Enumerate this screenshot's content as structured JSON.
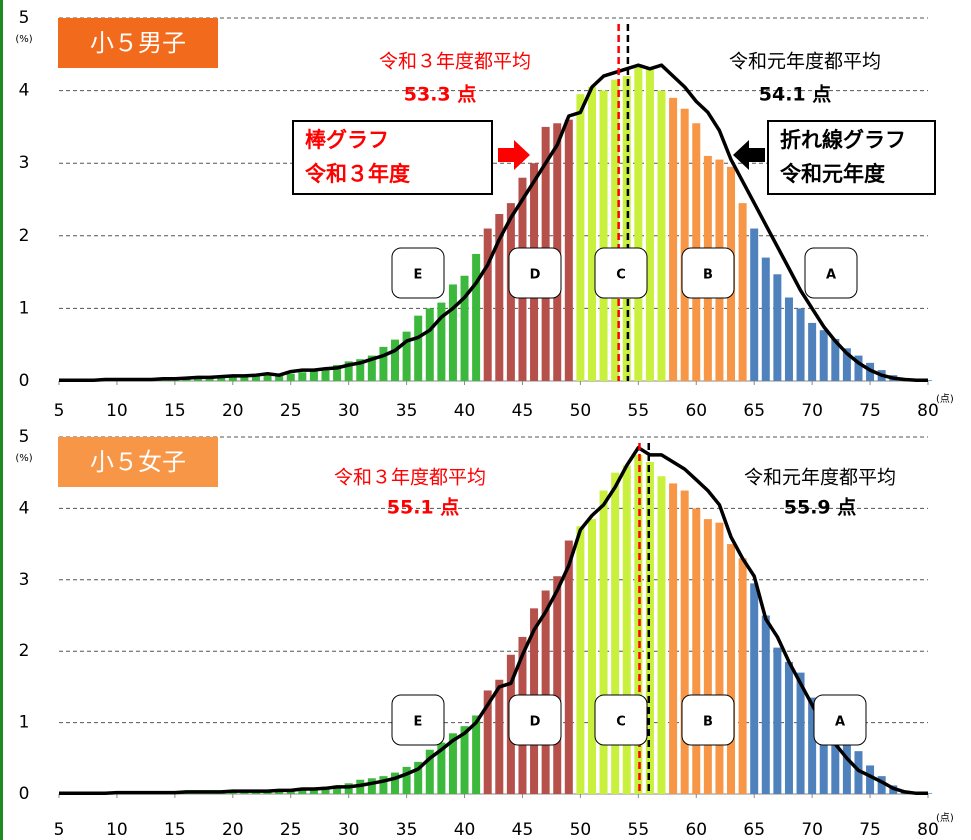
{
  "chart_data": [
    {
      "type": "bar",
      "title": "小５男子",
      "title_color": "#f26b1d",
      "y_unit": "(%)",
      "x_unit": "(点)",
      "x": [
        5,
        6,
        7,
        8,
        9,
        10,
        11,
        12,
        13,
        14,
        15,
        16,
        17,
        18,
        19,
        20,
        21,
        22,
        23,
        24,
        25,
        26,
        27,
        28,
        29,
        30,
        31,
        32,
        33,
        34,
        35,
        36,
        37,
        38,
        39,
        40,
        41,
        42,
        43,
        44,
        45,
        46,
        47,
        48,
        49,
        50,
        51,
        52,
        53,
        54,
        55,
        56,
        57,
        58,
        59,
        60,
        61,
        62,
        63,
        64,
        65,
        66,
        67,
        68,
        69,
        70,
        71,
        72,
        73,
        74,
        75,
        76,
        77,
        78,
        79,
        80
      ],
      "xlim": [
        5,
        80
      ],
      "xticks": [
        5,
        10,
        15,
        20,
        25,
        30,
        35,
        40,
        45,
        50,
        55,
        60,
        65,
        70,
        75,
        80
      ],
      "ylim": [
        0,
        5
      ],
      "yticks": [
        0,
        1,
        2,
        3,
        4,
        5
      ],
      "grid": true,
      "grades": [
        {
          "label": "E",
          "upper": 41,
          "color": "#3cb83c"
        },
        {
          "label": "D",
          "upper": 49,
          "color": "#b5504b"
        },
        {
          "label": "C",
          "upper": 57,
          "color": "#c8f03c"
        },
        {
          "label": "B",
          "upper": 64,
          "color": "#f79646"
        },
        {
          "label": "A",
          "upper": 80,
          "color": "#4f81bd"
        }
      ],
      "series": [
        {
          "type": "bar",
          "values": [
            0,
            0,
            0,
            0,
            0.01,
            0.01,
            0.01,
            0.01,
            0.02,
            0.02,
            0.02,
            0.03,
            0.03,
            0.04,
            0.05,
            0.05,
            0.06,
            0.07,
            0.08,
            0.09,
            0.1,
            0.12,
            0.15,
            0.18,
            0.22,
            0.27,
            0.3,
            0.35,
            0.47,
            0.57,
            0.68,
            0.9,
            1.0,
            1.08,
            1.33,
            1.45,
            1.75,
            2.1,
            2.3,
            2.45,
            2.8,
            3.0,
            3.5,
            3.55,
            3.6,
            3.95,
            4.05,
            4.0,
            4.15,
            4.2,
            4.35,
            4.3,
            4.0,
            3.9,
            3.75,
            3.55,
            3.1,
            3.05,
            2.95,
            2.45,
            2.1,
            1.7,
            1.47,
            1.15,
            1.0,
            0.8,
            0.7,
            0.58,
            0.45,
            0.35,
            0.25,
            0.15,
            0.08,
            0.04,
            0.02,
            0.01
          ]
        },
        {
          "type": "line",
          "color": "#000000",
          "values": [
            0.01,
            0.01,
            0.01,
            0.01,
            0.02,
            0.02,
            0.02,
            0.02,
            0.02,
            0.03,
            0.03,
            0.04,
            0.05,
            0.05,
            0.06,
            0.07,
            0.07,
            0.08,
            0.1,
            0.08,
            0.13,
            0.15,
            0.15,
            0.17,
            0.18,
            0.22,
            0.25,
            0.3,
            0.35,
            0.42,
            0.55,
            0.6,
            0.7,
            0.88,
            1.0,
            1.15,
            1.35,
            1.6,
            1.95,
            2.25,
            2.5,
            2.75,
            3.0,
            3.25,
            3.65,
            3.7,
            4.05,
            4.2,
            4.25,
            4.3,
            4.35,
            4.3,
            4.35,
            4.2,
            4.05,
            3.85,
            3.7,
            3.45,
            3.05,
            2.75,
            2.45,
            2.15,
            1.85,
            1.55,
            1.25,
            1.0,
            0.75,
            0.55,
            0.38,
            0.25,
            0.15,
            0.08,
            0.04,
            0.02,
            0.01,
            0.01
          ]
        }
      ],
      "means": [
        {
          "label": "令和３年度都平均",
          "value": 53.3,
          "value_label": "53.3 点",
          "color": "#ff0000"
        },
        {
          "label": "令和元年度都平均",
          "value": 54.1,
          "value_label": "54.1 点",
          "color": "#000000"
        }
      ],
      "legend_boxes": [
        {
          "lines": [
            "棒グラフ",
            "令和３年度"
          ],
          "color": "#ff0000"
        },
        {
          "lines": [
            "折れ線グラフ",
            "令和元年度"
          ],
          "color": "#000000"
        }
      ]
    },
    {
      "type": "bar",
      "title": "小５女子",
      "title_color": "#f79646",
      "y_unit": "(%)",
      "x_unit": "(点)",
      "x": [
        5,
        6,
        7,
        8,
        9,
        10,
        11,
        12,
        13,
        14,
        15,
        16,
        17,
        18,
        19,
        20,
        21,
        22,
        23,
        24,
        25,
        26,
        27,
        28,
        29,
        30,
        31,
        32,
        33,
        34,
        35,
        36,
        37,
        38,
        39,
        40,
        41,
        42,
        43,
        44,
        45,
        46,
        47,
        48,
        49,
        50,
        51,
        52,
        53,
        54,
        55,
        56,
        57,
        58,
        59,
        60,
        61,
        62,
        63,
        64,
        65,
        66,
        67,
        68,
        69,
        70,
        71,
        72,
        73,
        74,
        75,
        76,
        77,
        78,
        79,
        80
      ],
      "xlim": [
        5,
        80
      ],
      "xticks": [
        5,
        10,
        15,
        20,
        25,
        30,
        35,
        40,
        45,
        50,
        55,
        60,
        65,
        70,
        75,
        80
      ],
      "ylim": [
        0,
        5
      ],
      "yticks": [
        0,
        1,
        2,
        3,
        4,
        5
      ],
      "grid": true,
      "grades": [
        {
          "label": "E",
          "upper": 41,
          "color": "#3cb83c"
        },
        {
          "label": "D",
          "upper": 49,
          "color": "#b5504b"
        },
        {
          "label": "C",
          "upper": 57,
          "color": "#c8f03c"
        },
        {
          "label": "B",
          "upper": 64,
          "color": "#f79646"
        },
        {
          "label": "A",
          "upper": 80,
          "color": "#4f81bd"
        }
      ],
      "series": [
        {
          "type": "bar",
          "values": [
            0,
            0,
            0,
            0,
            0,
            0.01,
            0.01,
            0.01,
            0.01,
            0.01,
            0.01,
            0.01,
            0.02,
            0.02,
            0.02,
            0.02,
            0.02,
            0.03,
            0.03,
            0.04,
            0.05,
            0.06,
            0.08,
            0.1,
            0.12,
            0.15,
            0.2,
            0.22,
            0.25,
            0.3,
            0.38,
            0.45,
            0.62,
            0.72,
            0.85,
            0.95,
            1.1,
            1.45,
            1.6,
            1.95,
            2.2,
            2.6,
            2.85,
            3.05,
            3.55,
            3.75,
            3.85,
            4.25,
            4.5,
            4.6,
            4.75,
            4.65,
            4.45,
            4.35,
            4.25,
            4.0,
            3.85,
            3.8,
            3.5,
            3.3,
            2.95,
            2.5,
            2.05,
            1.85,
            1.7,
            1.35,
            1.2,
            1.0,
            0.8,
            0.6,
            0.4,
            0.25,
            0.12,
            0.05,
            0.02,
            0.01
          ]
        },
        {
          "type": "line",
          "color": "#000000",
          "values": [
            0.01,
            0.01,
            0.01,
            0.01,
            0.01,
            0.02,
            0.02,
            0.02,
            0.02,
            0.02,
            0.02,
            0.03,
            0.03,
            0.03,
            0.03,
            0.04,
            0.04,
            0.04,
            0.04,
            0.05,
            0.05,
            0.07,
            0.07,
            0.08,
            0.1,
            0.1,
            0.12,
            0.15,
            0.18,
            0.22,
            0.28,
            0.35,
            0.5,
            0.62,
            0.75,
            0.85,
            1.0,
            1.25,
            1.5,
            1.55,
            1.95,
            2.3,
            2.55,
            2.85,
            3.2,
            3.7,
            3.9,
            4.05,
            4.3,
            4.6,
            4.85,
            4.75,
            4.75,
            4.65,
            4.55,
            4.4,
            4.25,
            4.05,
            3.6,
            3.3,
            3.05,
            2.45,
            2.2,
            1.85,
            1.55,
            1.25,
            0.95,
            0.7,
            0.5,
            0.33,
            0.25,
            0.17,
            0.08,
            0.03,
            0.01,
            0.01
          ]
        }
      ],
      "means": [
        {
          "label": "令和３年度都平均",
          "value": 55.1,
          "value_label": "55.1 点",
          "color": "#ff0000"
        },
        {
          "label": "令和元年度都平均",
          "value": 55.9,
          "value_label": "55.9 点",
          "color": "#000000"
        }
      ]
    }
  ]
}
